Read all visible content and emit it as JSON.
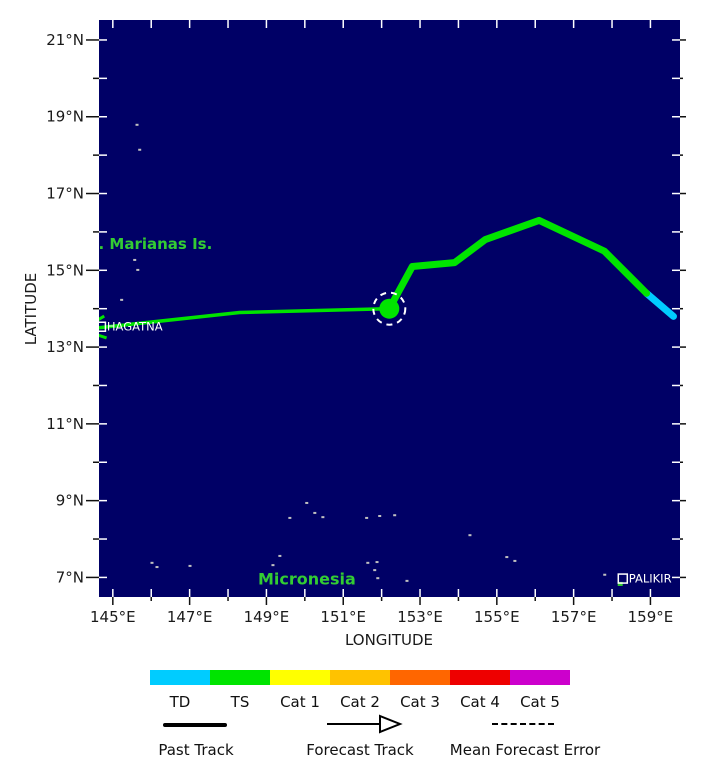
{
  "chart_data": {
    "type": "line",
    "title": "",
    "xlabel": "LONGITUDE",
    "ylabel": "LATITUDE",
    "lon_range": [
      144.64,
      159.77
    ],
    "lat_range": [
      6.49,
      21.52
    ],
    "lon_labeled_ticks": [
      145,
      147,
      149,
      151,
      153,
      155,
      157,
      159
    ],
    "lat_labeled_ticks": [
      7,
      9,
      11,
      13,
      15,
      17,
      19,
      21
    ],
    "lon_suffix": "°E",
    "lat_suffix": "°N",
    "background_color": "#000066",
    "grid": false,
    "series": [
      {
        "name": "Past Track",
        "points": [
          [
            159.6,
            13.8
          ],
          [
            158.9,
            14.4
          ],
          [
            157.8,
            15.5
          ],
          [
            156.1,
            16.3
          ],
          [
            154.7,
            15.8
          ],
          [
            153.9,
            15.2
          ],
          [
            152.8,
            15.1
          ],
          [
            152.2,
            14.0
          ]
        ],
        "segment_categories": [
          "TD",
          "TS",
          "TS",
          "TS",
          "TS",
          "TS",
          "TS"
        ],
        "width": 7
      },
      {
        "name": "Forecast Track",
        "points": [
          [
            152.2,
            14.0
          ],
          [
            148.3,
            13.9
          ],
          [
            144.6,
            13.5
          ]
        ],
        "category": "TS",
        "width": 3.5,
        "arrow": true
      }
    ],
    "current_position": {
      "lon": 152.2,
      "lat": 14.0,
      "dot_radius": 10,
      "error_circle_radius": 16
    },
    "geo_labels": [
      {
        "text": "N. Marianas Is.",
        "lon": 144.3,
        "lat": 15.56,
        "size": 15
      },
      {
        "text": "Micronesia",
        "lon": 148.78,
        "lat": 6.81,
        "size": 16
      }
    ],
    "geo_label_color": "#33CC33",
    "cities": [
      {
        "name": "HAGATNA",
        "lon": 144.69,
        "lat": 13.53
      },
      {
        "name": "PALIKIR",
        "lon": 158.28,
        "lat": 6.97
      }
    ],
    "islands": [
      [
        145.63,
        18.79
      ],
      [
        145.7,
        18.14
      ],
      [
        145.57,
        15.27
      ],
      [
        145.65,
        15.01
      ],
      [
        145.23,
        14.23
      ],
      [
        146.02,
        7.38
      ],
      [
        146.15,
        7.27
      ],
      [
        147.01,
        7.3
      ],
      [
        149.17,
        7.32
      ],
      [
        149.35,
        7.56
      ],
      [
        150.05,
        8.94
      ],
      [
        150.26,
        8.68
      ],
      [
        149.61,
        8.55
      ],
      [
        150.47,
        8.57
      ],
      [
        151.61,
        8.55
      ],
      [
        151.95,
        8.6
      ],
      [
        152.34,
        8.62
      ],
      [
        154.3,
        8.1
      ],
      [
        155.26,
        7.53
      ],
      [
        155.47,
        7.43
      ],
      [
        151.64,
        7.38
      ],
      [
        151.88,
        7.4
      ],
      [
        151.82,
        7.19
      ],
      [
        151.9,
        6.98
      ],
      [
        152.66,
        6.91
      ],
      [
        157.81,
        7.07
      ]
    ],
    "island_color": "#C0C0C0",
    "green_islet": {
      "lon": 158.2,
      "lat": 6.83
    }
  },
  "legend": {
    "categories": [
      {
        "label": "TD",
        "color": "#00CCFF"
      },
      {
        "label": "TS",
        "color": "#00E400"
      },
      {
        "label": "Cat 1",
        "color": "#FFFF00"
      },
      {
        "label": "Cat 2",
        "color": "#FFC200"
      },
      {
        "label": "Cat 3",
        "color": "#FF6600"
      },
      {
        "label": "Cat 4",
        "color": "#EE0000"
      },
      {
        "label": "Cat 5",
        "color": "#CC00CC"
      }
    ],
    "items": [
      {
        "label": "Past Track",
        "symbol": "thick-solid-line"
      },
      {
        "label": "Forecast Track",
        "symbol": "arrow-line"
      },
      {
        "label": "Mean Forecast Error",
        "symbol": "dashed-line"
      }
    ]
  }
}
